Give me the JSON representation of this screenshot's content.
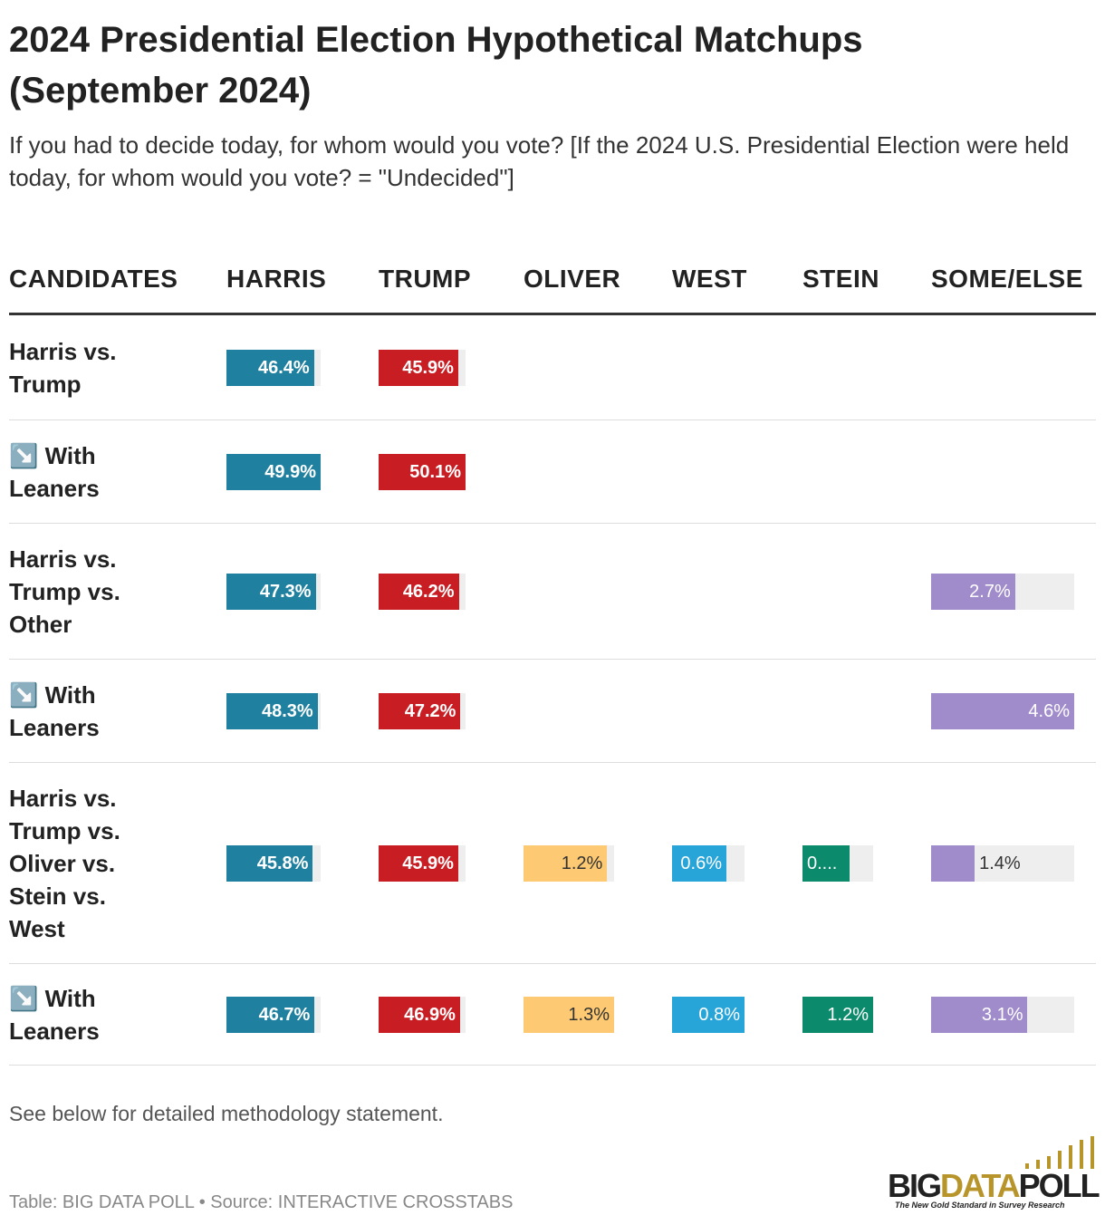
{
  "header": {
    "title": "2024 Presidential Election Hypothetical Matchups (September 2024)",
    "subtitle": "If you had to decide today, for whom would you vote? [If the 2024 U.S. Presidential Election were held today, for whom would you vote? = \"Undecided\"]"
  },
  "table": {
    "row_header": "CANDIDATES",
    "columns": [
      {
        "name": "HARRIS",
        "color": "#20809f"
      },
      {
        "name": "TRUMP",
        "color": "#c81e23"
      },
      {
        "name": "OLIVER",
        "color": "#fdc972"
      },
      {
        "name": "WEST",
        "color": "#27a4d8"
      },
      {
        "name": "STEIN",
        "color": "#0b8a6c"
      },
      {
        "name": "SOME/ELSE",
        "color": "#a08ccb"
      }
    ],
    "rows": [
      {
        "label": "Harris vs. Trump",
        "values": [
          46.4,
          45.9,
          null,
          null,
          null,
          null
        ],
        "value_labels": [
          "46.4%",
          "45.9%",
          null,
          null,
          null,
          null
        ]
      },
      {
        "label": "↘️ With Leaners",
        "values": [
          49.9,
          50.1,
          null,
          null,
          null,
          null
        ],
        "value_labels": [
          "49.9%",
          "50.1%",
          null,
          null,
          null,
          null
        ]
      },
      {
        "label": "Harris vs. Trump vs. Other",
        "values": [
          47.3,
          46.2,
          null,
          null,
          null,
          2.7
        ],
        "value_labels": [
          "47.3%",
          "46.2%",
          null,
          null,
          null,
          "2.7%"
        ]
      },
      {
        "label": "↘️ With Leaners",
        "values": [
          48.3,
          47.2,
          null,
          null,
          null,
          4.6
        ],
        "value_labels": [
          "48.3%",
          "47.2%",
          null,
          null,
          null,
          "4.6%"
        ]
      },
      {
        "label": "Harris vs. Trump vs. Oliver vs. Stein vs. West",
        "values": [
          45.8,
          45.9,
          1.2,
          0.6,
          0.8,
          1.4
        ],
        "value_labels": [
          "45.8%",
          "45.9%",
          "1.2%",
          "0.6%",
          "0....",
          "1.4%"
        ]
      },
      {
        "label": "↘️ With Leaners",
        "values": [
          46.7,
          46.9,
          1.3,
          0.8,
          1.2,
          3.1
        ],
        "value_labels": [
          "46.7%",
          "46.9%",
          "1.3%",
          "0.8%",
          "1.2%",
          "3.1%"
        ]
      }
    ]
  },
  "footer": {
    "note": "See below for detailed methodology statement.",
    "source": "Table: BIG DATA POLL • Source: INTERACTIVE CROSSTABS",
    "logo": [
      "BIG",
      "DATA",
      "POLL"
    ],
    "tagline": "The New Gold Standard in Survey Research"
  }
}
